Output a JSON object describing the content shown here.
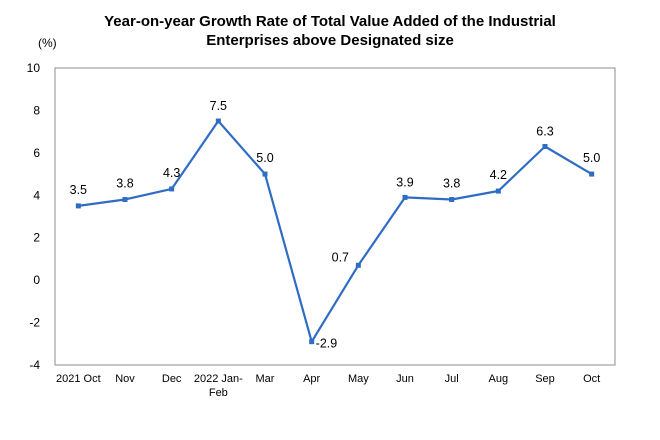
{
  "chart_data": {
    "type": "line",
    "title_lines": [
      "Year-on-year Growth Rate of Total Value Added of the Industrial",
      "Enterprises above Designated size"
    ],
    "unit": "(%)",
    "categories": [
      [
        "2021 Oct"
      ],
      [
        "Nov"
      ],
      [
        "Dec"
      ],
      [
        "2022 Jan-",
        "Feb"
      ],
      [
        "Mar"
      ],
      [
        "Apr"
      ],
      [
        "May"
      ],
      [
        "Jun"
      ],
      [
        "Jul"
      ],
      [
        "Aug"
      ],
      [
        "Sep"
      ],
      [
        "Oct"
      ]
    ],
    "values": [
      3.5,
      3.8,
      4.3,
      7.5,
      5.0,
      -2.9,
      0.7,
      3.9,
      3.8,
      4.2,
      6.3,
      5.0
    ],
    "labels": [
      "3.5",
      "3.8",
      "4.3",
      "7.5",
      "5.0",
      "-2.9",
      "0.7",
      "3.9",
      "3.8",
      "4.2",
      "6.3",
      "5.0"
    ],
    "ylim": [
      -4,
      10
    ],
    "yticks": [
      -4,
      -2,
      0,
      2,
      4,
      6,
      8,
      10
    ],
    "line_color": "#2F6CC4",
    "grid": false
  }
}
